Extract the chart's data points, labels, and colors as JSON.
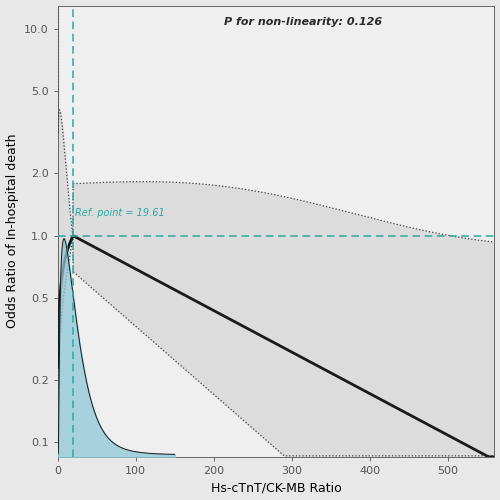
{
  "title_annotation": "P for non-linearity: 0.126",
  "ref_point": 19.61,
  "ref_label": "Ref. point = 19.61",
  "xlabel": "Hs-cTnT/CK-MB Ratio",
  "ylabel": "Odds Ratio of In-hospital death",
  "xmin": 0,
  "xmax": 560,
  "ymin": 0.085,
  "ymax": 13.0,
  "yticks": [
    0.1,
    0.2,
    0.5,
    1.0,
    2.0,
    5.0,
    10.0
  ],
  "ytick_labels": [
    "0.1",
    "0.2",
    "0.5",
    "1.0",
    "2.0",
    "5.0",
    "10.0"
  ],
  "xticks": [
    0,
    100,
    200,
    300,
    400,
    500
  ],
  "background_color": "#e8e8e8",
  "plot_bg_color": "#efefef",
  "teal_color": "#29aaa4",
  "blue_fill_color": "#8ec8d8",
  "ci_fill_color": "#dcdcdc",
  "line_color": "#1a1a1a",
  "ci_line_color": "#444444"
}
